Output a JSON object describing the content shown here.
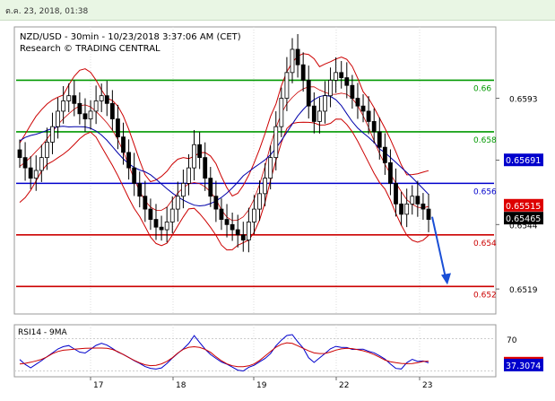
{
  "datetime_header": "ต.ค. 23, 2018, 01:38",
  "chart_data": [
    {
      "type": "candlestick",
      "title": "NZD/USD - 30min - 10/23/2018 3:37:06 AM (CET)",
      "subtitle": "Research © TRADING CENTRAL",
      "x_ticks": [
        "17",
        "18",
        "19",
        "22",
        "23"
      ],
      "y_ticks": [
        "0.6593",
        "0.6569",
        "0.6544",
        "0.6519"
      ],
      "ylim": [
        0.651,
        0.662
      ],
      "levels": [
        {
          "label": "0.66",
          "value": 0.66,
          "color": "#009900"
        },
        {
          "label": "0.658",
          "value": 0.658,
          "color": "#009900"
        },
        {
          "label": "0.656",
          "value": 0.656,
          "color": "#0000cc"
        },
        {
          "label": "0.654",
          "value": 0.654,
          "color": "#cc0000"
        },
        {
          "label": "0.652",
          "value": 0.652,
          "color": "#cc0000"
        }
      ],
      "price_tags": [
        {
          "label": "0.65691",
          "value": 0.65691,
          "bg": "#0000cc",
          "fg": "#ffffff"
        },
        {
          "label": "0.65515",
          "value": 0.65515,
          "bg": "#dd0000",
          "fg": "#ffffff"
        },
        {
          "label": "0.65465",
          "value": 0.65465,
          "bg": "#000000",
          "fg": "#ffffff"
        }
      ],
      "closes": [
        0.657,
        0.6566,
        0.6562,
        0.6565,
        0.657,
        0.6576,
        0.6582,
        0.6588,
        0.6592,
        0.6594,
        0.6591,
        0.6587,
        0.6585,
        0.6588,
        0.6592,
        0.6594,
        0.6591,
        0.6585,
        0.6578,
        0.6572,
        0.6566,
        0.656,
        0.6555,
        0.655,
        0.6546,
        0.6543,
        0.6542,
        0.6545,
        0.655,
        0.6555,
        0.656,
        0.6566,
        0.6575,
        0.657,
        0.6562,
        0.6555,
        0.655,
        0.6546,
        0.6544,
        0.6542,
        0.654,
        0.6538,
        0.6545,
        0.655,
        0.6556,
        0.6562,
        0.657,
        0.6582,
        0.6593,
        0.6603,
        0.6612,
        0.6606,
        0.66,
        0.659,
        0.6584,
        0.6588,
        0.6594,
        0.66,
        0.6603,
        0.6601,
        0.6598,
        0.6593,
        0.659,
        0.6588,
        0.6584,
        0.658,
        0.6574,
        0.6568,
        0.656,
        0.6552,
        0.6548,
        0.6552,
        0.6555,
        0.6552,
        0.655,
        0.6546
      ],
      "forecast_arrow": {
        "from": 0.6547,
        "to": 0.6521
      },
      "indicator": {
        "label": "RSI14 - 9MA",
        "y_ticks": [
          "70"
        ],
        "ylim": [
          25,
          85
        ],
        "tags": [
          {
            "label": "39.6468",
            "value": 39.6468,
            "bg": "#dd0000",
            "fg": "#ffffff"
          },
          {
            "label": "37.3074",
            "value": 37.3074,
            "bg": "#0000cc",
            "fg": "#ffffff"
          }
        ]
      }
    }
  ]
}
